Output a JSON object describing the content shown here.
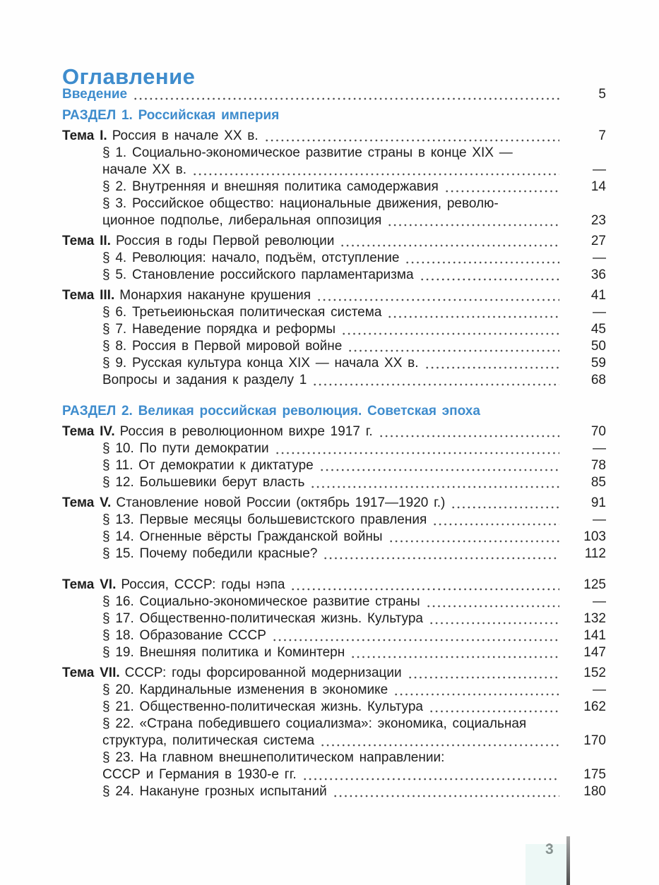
{
  "page": {
    "title": "Оглавление",
    "page_number": "3"
  },
  "colors": {
    "heading_blue": "#3e8ccd",
    "body_text": "#1e1e1e",
    "leader_dots": "#4b4b4b"
  },
  "toc": {
    "entries": [
      {
        "type": "intro",
        "label": "Введение",
        "page": "5"
      },
      {
        "type": "section",
        "label": "РАЗДЕЛ 1. Российская империя"
      },
      {
        "type": "theme",
        "prefix": "Тема I.",
        "text": "Россия в начале XX в.",
        "page": "7"
      },
      {
        "type": "sub2",
        "line1": "§ 1. Социально-экономическое развитие страны в конце XIX —",
        "line2": "начале XX в.",
        "page": "—"
      },
      {
        "type": "sub",
        "text": "§ 2. Внутренняя и внешняя политика самодержавия",
        "page": "14"
      },
      {
        "type": "sub2",
        "line1": "§ 3. Российское общество: национальные движения, револю-",
        "line2": "ционное подполье, либеральная оппозиция",
        "page": "23"
      },
      {
        "type": "theme",
        "prefix": "Тема II.",
        "text": "Россия в годы Первой революции",
        "page": "27"
      },
      {
        "type": "sub",
        "text": "§ 4. Революция: начало, подъём, отступление",
        "page": "—"
      },
      {
        "type": "sub",
        "text": "§ 5. Становление российского парламентаризма",
        "page": "36"
      },
      {
        "type": "theme",
        "prefix": "Тема III.",
        "text": "Монархия накануне крушения",
        "page": "41"
      },
      {
        "type": "sub",
        "text": "§ 6. Третьеиюньская политическая система",
        "page": "—"
      },
      {
        "type": "sub",
        "text": "§ 7. Наведение порядка и реформы",
        "page": "45"
      },
      {
        "type": "sub",
        "text": "§ 8. Россия в Первой мировой войне",
        "page": "50"
      },
      {
        "type": "sub",
        "text": "§ 9. Русская культура конца XIX — начала XX в.",
        "page": "59"
      },
      {
        "type": "sub",
        "text": "Вопросы и задания к разделу 1",
        "page": "68"
      },
      {
        "type": "section",
        "label": "РАЗДЕЛ 2. Великая российская революция. Советская эпоха",
        "gap": true
      },
      {
        "type": "theme",
        "prefix": "Тема IV.",
        "text": "Россия в революционном вихре 1917 г.",
        "page": "70"
      },
      {
        "type": "sub",
        "text": "§ 10. По пути демократии",
        "page": "—"
      },
      {
        "type": "sub",
        "text": "§ 11. От демократии к диктатуре",
        "page": "78"
      },
      {
        "type": "sub",
        "text": "§ 12. Большевики берут власть",
        "page": "85"
      },
      {
        "type": "theme",
        "prefix": "Тема V.",
        "text": "Становление новой России (октябрь 1917—1920 г.)",
        "page": "91"
      },
      {
        "type": "sub",
        "text": "§ 13. Первые месяцы большевистского правления",
        "page": "—"
      },
      {
        "type": "sub",
        "text": "§ 14. Огненные вёрсты Гражданской войны",
        "page": "103"
      },
      {
        "type": "sub",
        "text": "§ 15. Почему победили красные?",
        "page": "112"
      },
      {
        "type": "theme",
        "prefix": "Тема VI.",
        "text": "Россия, СССР: годы нэпа",
        "page": "125",
        "gap": true
      },
      {
        "type": "sub",
        "text": "§ 16. Социально-экономическое развитие страны",
        "page": "—"
      },
      {
        "type": "sub",
        "text": "§ 17. Общественно-политическая жизнь. Культура",
        "page": "132"
      },
      {
        "type": "sub",
        "text": "§ 18. Образование СССР",
        "page": "141"
      },
      {
        "type": "sub",
        "text": "§ 19. Внешняя политика и Коминтерн",
        "page": "147"
      },
      {
        "type": "theme",
        "prefix": "Тема VII.",
        "text": "СССР: годы форсированной модернизации",
        "page": "152"
      },
      {
        "type": "sub",
        "text": "§ 20. Кардинальные изменения в экономике",
        "page": "—"
      },
      {
        "type": "sub",
        "text": "§ 21. Общественно-политическая жизнь. Культура",
        "page": "162"
      },
      {
        "type": "sub2",
        "line1": "§ 22. «Страна победившего социализма»: экономика, социальная",
        "line2": "структура, политическая система",
        "page": "170"
      },
      {
        "type": "sub2",
        "line1": "§ 23. На главном внешнеполитическом направлении:",
        "line2": "СССР и Германия в 1930-е гг.",
        "page": "175"
      },
      {
        "type": "sub",
        "text": "§ 24. Накануне грозных испытаний",
        "page": "180"
      }
    ]
  }
}
